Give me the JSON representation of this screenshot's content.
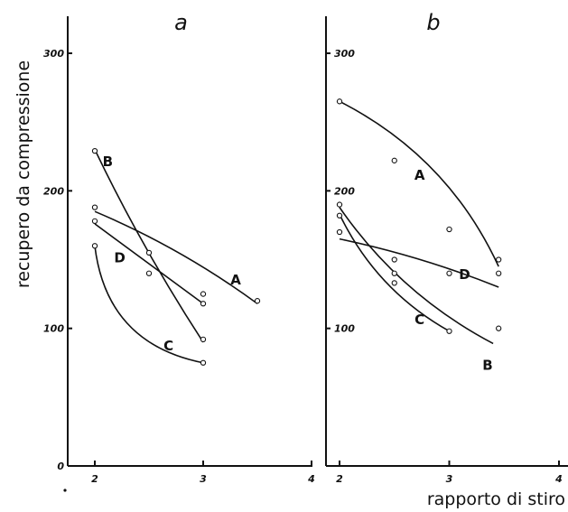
{
  "figure": {
    "xlabel": "rapporto di stiro",
    "ylabel": "recupero da compressione"
  },
  "chart_data": [
    {
      "type": "line",
      "title": "a",
      "xlim": [
        2,
        4
      ],
      "ylim": [
        0,
        300
      ],
      "x_ticks": [
        "2",
        "3",
        "4"
      ],
      "y_ticks": [
        "0",
        "100",
        "200",
        "300"
      ],
      "series": [
        {
          "name": "A",
          "x": [
            2.0,
            3.5
          ],
          "y": [
            188,
            120
          ],
          "fit": [
            [
              2.0,
              185
            ],
            [
              3.5,
              118
            ]
          ],
          "bend": -6,
          "label_at": [
            3.3,
            132
          ]
        },
        {
          "name": "B",
          "x": [
            2.0,
            2.5,
            3.0
          ],
          "y": [
            229,
            155,
            92
          ],
          "fit": [
            [
              2.0,
              230
            ],
            [
              3.0,
              90
            ]
          ],
          "bend": 4,
          "label_at": [
            2.12,
            218
          ]
        },
        {
          "name": "C",
          "x": [
            2.0,
            3.0
          ],
          "y": [
            160,
            75
          ],
          "fit": [
            [
              2.0,
              160
            ],
            [
              3.0,
              75
            ]
          ],
          "bend": 32,
          "label_at": [
            2.68,
            84
          ]
        },
        {
          "name": "D",
          "x": [
            2.0,
            2.5,
            3.0,
            3.0
          ],
          "y": [
            178,
            140,
            125,
            118
          ],
          "fit": [
            [
              2.0,
              176
            ],
            [
              3.0,
              118
            ]
          ],
          "bend": 0,
          "label_at": [
            2.23,
            148
          ]
        }
      ]
    },
    {
      "type": "line",
      "title": "b",
      "xlim": [
        2,
        4
      ],
      "ylim": [
        0,
        300
      ],
      "x_ticks": [
        "2",
        "3",
        "4"
      ],
      "y_ticks": [
        "100",
        "200",
        "300"
      ],
      "series": [
        {
          "name": "A",
          "x": [
            2.0,
            2.5,
            3.0,
            3.45
          ],
          "y": [
            265,
            222,
            172,
            150
          ],
          "fit": [
            [
              2.0,
              265
            ],
            [
              3.45,
              145
            ]
          ],
          "bend": -22,
          "label_at": [
            2.73,
            208
          ]
        },
        {
          "name": "B",
          "x": [
            2.0,
            2.5,
            3.45
          ],
          "y": [
            190,
            140,
            100
          ],
          "fit": [
            [
              2.0,
              188
            ],
            [
              3.4,
              89
            ]
          ],
          "bend": 14,
          "label_at": [
            3.35,
            70
          ]
        },
        {
          "name": "C",
          "x": [
            2.0,
            2.5,
            3.0
          ],
          "y": [
            182,
            133,
            98
          ],
          "fit": [
            [
              2.0,
              183
            ],
            [
              3.0,
              98
            ]
          ],
          "bend": 14,
          "label_at": [
            2.73,
            103
          ]
        },
        {
          "name": "D",
          "x": [
            2.0,
            2.5,
            3.0,
            3.45
          ],
          "y": [
            170,
            150,
            140,
            140
          ],
          "fit": [
            [
              2.0,
              165
            ],
            [
              3.45,
              130
            ]
          ],
          "bend": -4,
          "label_at": [
            3.14,
            136
          ]
        }
      ]
    }
  ]
}
